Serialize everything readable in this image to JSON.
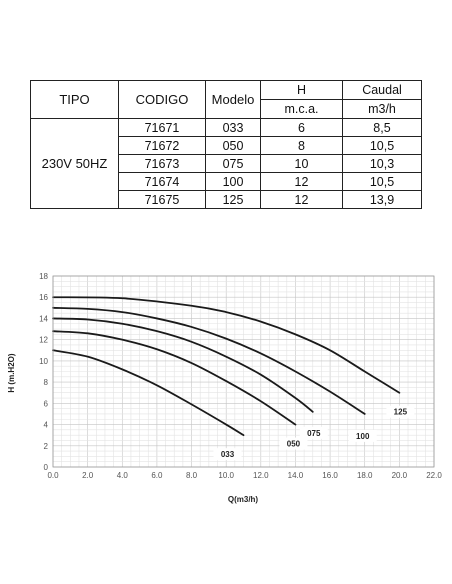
{
  "table": {
    "headers": {
      "tipo": "TIPO",
      "codigo": "CODIGO",
      "modelo": "Modelo",
      "h": "H",
      "h_unit": "m.c.a.",
      "caudal": "Caudal",
      "caudal_unit": "m3/h"
    },
    "tipo_value": "230V 50HZ",
    "rows": [
      {
        "codigo": "71671",
        "modelo": "033",
        "h": "6",
        "caudal": "8,5"
      },
      {
        "codigo": "71672",
        "modelo": "050",
        "h": "8",
        "caudal": "10,5"
      },
      {
        "codigo": "71673",
        "modelo": "075",
        "h": "10",
        "caudal": "10,3"
      },
      {
        "codigo": "71674",
        "modelo": "100",
        "h": "12",
        "caudal": "10,5"
      },
      {
        "codigo": "71675",
        "modelo": "125",
        "h": "12",
        "caudal": "13,9"
      }
    ]
  },
  "chart_data": {
    "type": "line",
    "title": "",
    "xlabel": "Q(m3/h)",
    "ylabel": "H (m.H2O)",
    "xlim": [
      0,
      22
    ],
    "ylim": [
      0,
      18
    ],
    "x_ticks": [
      "0.0",
      "2.0",
      "4.0",
      "6.0",
      "8.0",
      "10.0",
      "12.0",
      "14.0",
      "16.0",
      "18.0",
      "20.0",
      "22.0"
    ],
    "y_ticks": [
      "0",
      "2",
      "4",
      "6",
      "8",
      "10",
      "12",
      "14",
      "16",
      "18"
    ],
    "grid": true,
    "series": [
      {
        "name": "033",
        "x": [
          0,
          2,
          4,
          6,
          8,
          10,
          11
        ],
        "y": [
          11,
          10.4,
          9.2,
          7.7,
          5.9,
          4,
          3
        ]
      },
      {
        "name": "050",
        "x": [
          0,
          2,
          4,
          6,
          8,
          10,
          12,
          14
        ],
        "y": [
          12.8,
          12.6,
          12,
          11.1,
          9.8,
          8.1,
          6.2,
          4
        ]
      },
      {
        "name": "075",
        "x": [
          0,
          2,
          4,
          6,
          8,
          10,
          12,
          14,
          15
        ],
        "y": [
          14,
          13.9,
          13.5,
          12.8,
          11.8,
          10.4,
          8.7,
          6.5,
          5.2
        ]
      },
      {
        "name": "100",
        "x": [
          0,
          2,
          4,
          6,
          8,
          10,
          12,
          14,
          16,
          18
        ],
        "y": [
          15,
          14.9,
          14.6,
          14,
          13.2,
          12.1,
          10.7,
          9,
          7.1,
          5
        ]
      },
      {
        "name": "125",
        "x": [
          0,
          4,
          8,
          10,
          12,
          14,
          16,
          18,
          20
        ],
        "y": [
          16,
          15.9,
          15.2,
          14.6,
          13.7,
          12.5,
          11,
          9,
          7
        ]
      }
    ],
    "curve_labels": [
      "033",
      "050",
      "075",
      "100",
      "125"
    ]
  }
}
